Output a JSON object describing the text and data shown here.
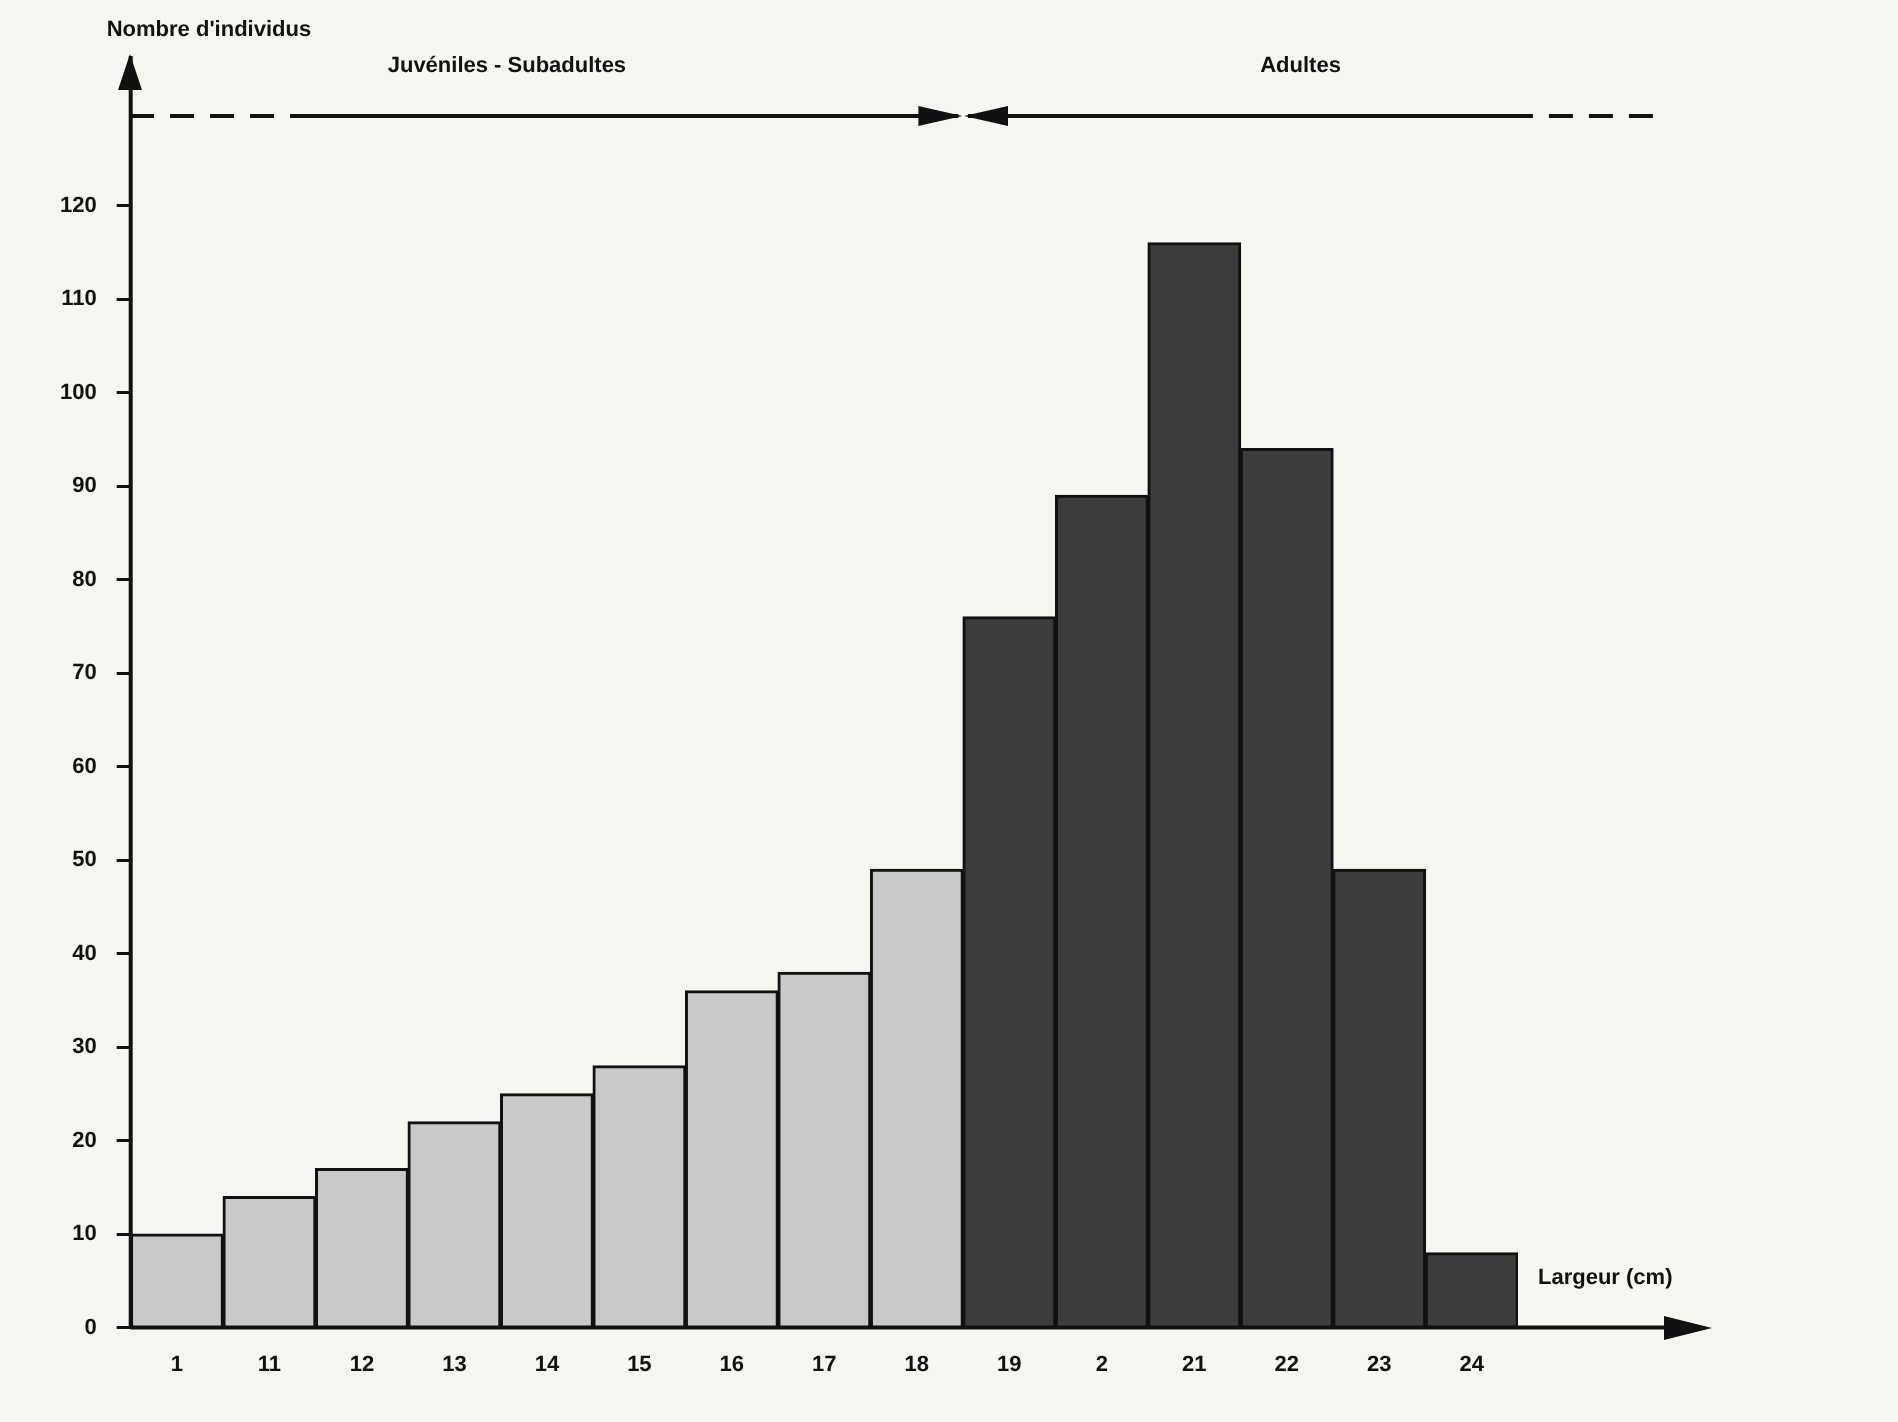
{
  "chart_data": {
    "type": "bar",
    "xlabel": "Largeur (cm)",
    "ylabel": "Nombre d'individus",
    "categories": [
      "1",
      "11",
      "12",
      "13",
      "14",
      "15",
      "16",
      "17",
      "18",
      "19",
      "2",
      "21",
      "22",
      "23",
      "24"
    ],
    "values": [
      10,
      14,
      17,
      22,
      25,
      28,
      36,
      38,
      49,
      76,
      89,
      116,
      94,
      49,
      8
    ],
    "colors": [
      "#c9c9c9",
      "#c9c9c9",
      "#c9c9c9",
      "#c9c9c9",
      "#c9c9c9",
      "#c9c9c9",
      "#c9c9c9",
      "#c9c9c9",
      "#c9c9c9",
      "#3d3d3d",
      "#3d3d3d",
      "#3d3d3d",
      "#3d3d3d",
      "#3d3d3d",
      "#3d3d3d"
    ],
    "ylim": [
      0,
      136
    ],
    "yticks": [
      0,
      10,
      20,
      30,
      40,
      50,
      60,
      70,
      80,
      90,
      100,
      110,
      120
    ],
    "annotations": [
      "Juvéniles - Subadultes",
      "Adultes"
    ],
    "grid": false,
    "legend": false
  }
}
